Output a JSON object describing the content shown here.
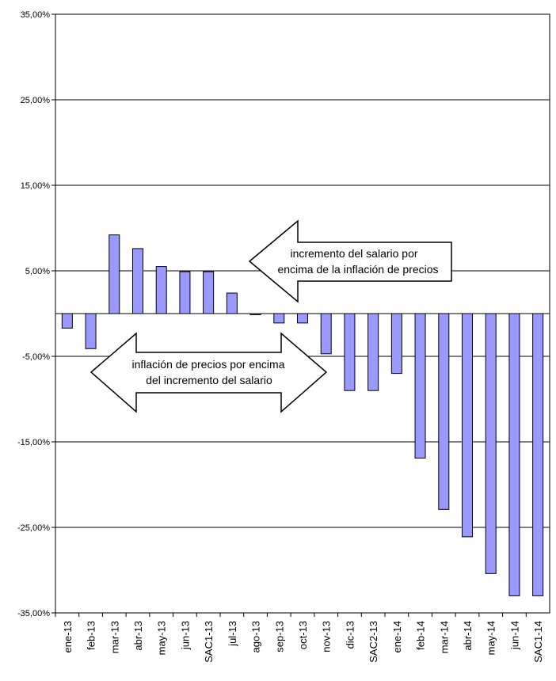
{
  "chart_data": {
    "type": "bar",
    "categories": [
      "ene-13",
      "feb-13",
      "mar-13",
      "abr-13",
      "may-13",
      "jun-13",
      "SAC1-13",
      "jul-13",
      "ago-13",
      "sep-13",
      "oct-13",
      "nov-13",
      "dic-13",
      "SAC2-13",
      "ene-14",
      "feb-14",
      "mar-14",
      "abr-14",
      "may-14",
      "jun-14",
      "SAC1-14"
    ],
    "values": [
      -1.7,
      -4.1,
      9.2,
      7.6,
      5.5,
      4.9,
      4.9,
      2.4,
      -0.1,
      -1.1,
      -1.1,
      -4.7,
      -9.0,
      -9.0,
      -7.0,
      -16.9,
      -22.9,
      -26.1,
      -30.4,
      -33.0,
      -33.0
    ],
    "ylim": [
      -35,
      35
    ],
    "yticks": [
      -35,
      -25,
      -15,
      -5,
      5,
      15,
      25,
      35
    ],
    "ytick_labels": [
      "-35,00%",
      "-25,00%",
      "-15,00%",
      "-5,00%",
      "5,00%",
      "15,00%",
      "25,00%",
      "35,00%"
    ],
    "grid": true,
    "bar_color": "#9999ff",
    "annotations": [
      {
        "lines": [
          "incremento del salario por",
          "encima de la inflación de precios"
        ],
        "arrow": "left"
      },
      {
        "lines": [
          "inflación de precios por encima",
          "del incremento del salario"
        ],
        "arrow": "both"
      }
    ]
  }
}
